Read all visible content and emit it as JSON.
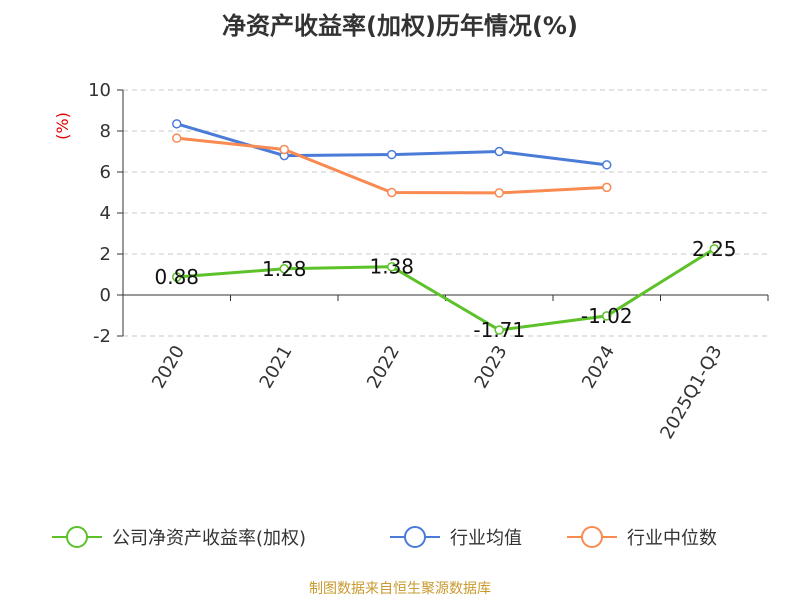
{
  "chart_data": {
    "type": "line",
    "title": "净资产收益率(加权)历年情况(%)",
    "ylabel": "(%)",
    "categories": [
      "2020",
      "2021",
      "2022",
      "2023",
      "2024",
      "2025Q1-Q3"
    ],
    "ylim": [
      -2,
      10
    ],
    "yticks": [
      -2,
      0,
      2,
      4,
      6,
      8,
      10
    ],
    "grid": true,
    "legend_position": "bottom",
    "series": [
      {
        "name": "公司净资产收益率(加权)",
        "color": "#5dc229",
        "values": [
          0.88,
          1.28,
          1.38,
          -1.71,
          -1.02,
          2.25
        ],
        "labels": [
          "0.88",
          "1.28",
          "1.38",
          "-1.71",
          "-1.02",
          "2.25"
        ]
      },
      {
        "name": "行业均值",
        "color": "#4a7bd8",
        "values": [
          8.35,
          6.8,
          6.85,
          7.0,
          6.35,
          null
        ]
      },
      {
        "name": "行业中位数",
        "color": "#f88a52",
        "values": [
          7.65,
          7.1,
          5.0,
          4.98,
          5.25,
          null
        ]
      }
    ]
  },
  "footer": {
    "source": "制图数据来自恒生聚源数据库"
  }
}
